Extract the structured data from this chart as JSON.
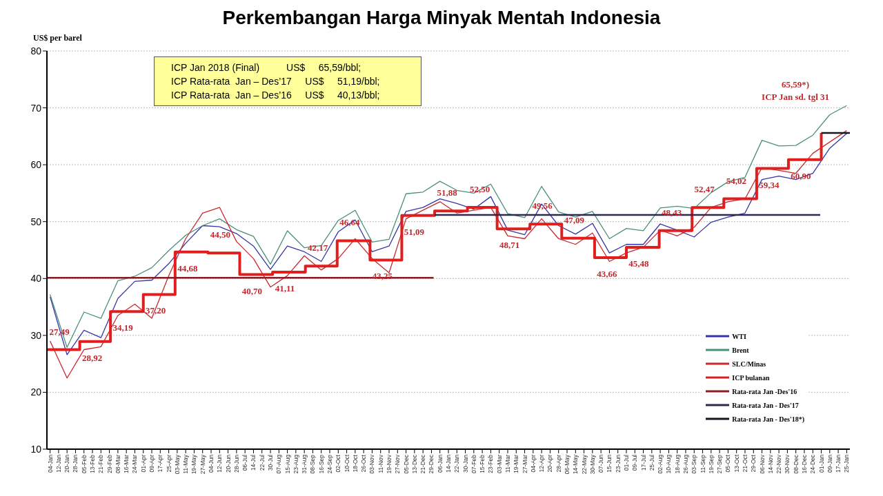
{
  "chart_data": {
    "type": "line",
    "title": "Perkembangan Harga Minyak Mentah Indonesia",
    "ylabel": "US$ per barel",
    "x": [
      "2016-01-04",
      "2016-01-20",
      "2016-02-05",
      "2016-02-21",
      "2016-03-08",
      "2016-03-24",
      "2016-04-09",
      "2016-04-25",
      "2016-05-11",
      "2016-05-27",
      "2016-06-12",
      "2016-06-28",
      "2016-07-14",
      "2016-07-30",
      "2016-08-15",
      "2016-08-31",
      "2016-09-16",
      "2016-10-02",
      "2016-10-18",
      "2016-11-03",
      "2016-11-19",
      "2016-12-05",
      "2016-12-21",
      "2017-01-06",
      "2017-01-22",
      "2017-02-07",
      "2017-02-23",
      "2017-03-11",
      "2017-03-27",
      "2017-04-12",
      "2017-04-28",
      "2017-05-14",
      "2017-05-30",
      "2017-06-15",
      "2017-07-01",
      "2017-07-17",
      "2017-08-02",
      "2017-08-18",
      "2017-09-03",
      "2017-09-19",
      "2017-10-05",
      "2017-10-21",
      "2017-11-06",
      "2017-11-22",
      "2017-12-08",
      "2017-12-24",
      "2018-01-09",
      "2018-01-25"
    ],
    "series": [
      {
        "name": "WTI",
        "color": "#3535a8",
        "values": [
          36.8,
          26.6,
          30.9,
          29.6,
          36.5,
          39.5,
          39.7,
          42.6,
          46.2,
          49.3,
          49.1,
          47.9,
          45.7,
          41.6,
          45.7,
          44.7,
          43.0,
          48.2,
          50.3,
          44.7,
          45.7,
          51.8,
          52.5,
          54.0,
          53.2,
          52.2,
          54.4,
          48.5,
          47.7,
          53.1,
          49.3,
          47.8,
          49.7,
          44.5,
          46.0,
          46.0,
          49.6,
          48.5,
          47.3,
          49.9,
          50.8,
          51.5,
          57.4,
          58.0,
          57.4,
          58.5,
          62.9,
          65.5
        ]
      },
      {
        "name": "Brent",
        "color": "#4a8f78",
        "values": [
          37.2,
          27.9,
          34.1,
          33.0,
          39.6,
          40.4,
          41.9,
          44.9,
          47.6,
          49.3,
          50.5,
          48.6,
          47.4,
          42.5,
          48.4,
          45.4,
          45.8,
          50.2,
          52.0,
          46.4,
          46.9,
          54.9,
          55.2,
          57.1,
          55.5,
          55.0,
          56.6,
          51.4,
          50.7,
          56.2,
          51.7,
          50.8,
          51.8,
          47.0,
          48.8,
          48.4,
          52.4,
          52.7,
          52.3,
          55.1,
          57.0,
          57.8,
          64.3,
          63.3,
          63.4,
          65.2,
          68.8,
          70.4
        ]
      },
      {
        "name": "SLC/Minas",
        "color": "#c8282d",
        "values": [
          29.0,
          22.5,
          27.5,
          28.0,
          33.5,
          35.5,
          33.0,
          40.5,
          47.0,
          51.5,
          52.5,
          46.5,
          43.5,
          38.5,
          40.5,
          44.0,
          41.5,
          43.5,
          47.0,
          43.5,
          41.0,
          50.5,
          52.0,
          53.5,
          51.5,
          52.0,
          52.5,
          47.5,
          47.0,
          50.5,
          47.0,
          46.0,
          48.0,
          43.0,
          44.5,
          45.5,
          48.5,
          47.5,
          49.0,
          52.5,
          53.5,
          54.0,
          59.5,
          59.0,
          58.5,
          62.0,
          64.0,
          66.0
        ]
      },
      {
        "name": "ICP bulanan",
        "type": "step",
        "color": "#e01e1e",
        "x": [
          "2016-01-01",
          "2016-02-01",
          "2016-03-01",
          "2016-04-01",
          "2016-05-01",
          "2016-06-01",
          "2016-07-01",
          "2016-08-01",
          "2016-09-01",
          "2016-10-01",
          "2016-11-01",
          "2016-12-01",
          "2017-01-01",
          "2017-02-01",
          "2017-03-01",
          "2017-04-01",
          "2017-05-01",
          "2017-06-01",
          "2017-07-01",
          "2017-08-01",
          "2017-09-01",
          "2017-10-01",
          "2017-11-01",
          "2017-12-01",
          "2018-01-01"
        ],
        "values": [
          27.49,
          28.92,
          34.19,
          37.2,
          44.68,
          44.5,
          40.7,
          41.11,
          42.17,
          46.64,
          43.25,
          51.09,
          51.88,
          52.5,
          48.71,
          49.56,
          47.09,
          43.66,
          45.48,
          48.43,
          52.47,
          54.02,
          59.34,
          60.9,
          65.59
        ],
        "value_labels": [
          "27,49",
          "28,92",
          "34,19",
          "37,20",
          "44,68",
          "44,50",
          "40,70",
          "41,11",
          "42,17",
          "46,64",
          "43,25",
          "51,09",
          "51,88",
          "52,50",
          "48,71",
          "49,56",
          "47,09",
          "43,66",
          "45,48",
          "48,43",
          "52,47",
          "54,02",
          "59,34",
          "60,90",
          null
        ]
      },
      {
        "name": "Rata-rata Jan -Des'16",
        "color": "#8b1c22",
        "x": [
          "2016-01-01",
          "2016-12-31"
        ],
        "values": [
          40.13,
          40.13
        ]
      },
      {
        "name": "Rata-rata Jan - Des'17",
        "color": "#2d2850",
        "x": [
          "2017-01-01",
          "2017-12-31"
        ],
        "values": [
          51.19,
          51.19
        ]
      },
      {
        "name": "Rata-rata Jan - Des'18*)",
        "color": "#15151f",
        "x": [
          "2018-01-01",
          "2018-01-28"
        ],
        "values": [
          65.59,
          65.59
        ]
      }
    ],
    "annotations": [
      "ICP Jan 2018 (Final)          US$     65,59/bbl;",
      "ICP Rata-rata  Jan – Des’17     US$     51,19/bbl;",
      "ICP Rata-rata  Jan – Des’16     US$     40,13/bbl;",
      "65,59*)",
      "ICP Jan sd. tgl 31"
    ],
    "ylim": [
      10,
      80
    ],
    "yticks": [
      10,
      20,
      30,
      40,
      50,
      60,
      70,
      80
    ],
    "xlim": [
      "2016-01-01",
      "2018-01-28"
    ],
    "xticks": [
      {
        "value": "2016-01-04",
        "label": "04-Jan"
      },
      {
        "value": "2016-01-12",
        "label": "12-Jan"
      },
      {
        "value": "2016-01-20",
        "label": "20-Jan"
      },
      {
        "value": "2016-01-28",
        "label": "28-Jan"
      },
      {
        "value": "2016-02-05",
        "label": "05-Feb"
      },
      {
        "value": "2016-02-13",
        "label": "13-Feb"
      },
      {
        "value": "2016-02-21",
        "label": "21-Feb"
      },
      {
        "value": "2016-02-29",
        "label": "29-Feb"
      },
      {
        "value": "2016-03-08",
        "label": "08-Mar"
      },
      {
        "value": "2016-03-16",
        "label": "16-Mar"
      },
      {
        "value": "2016-03-24",
        "label": "24-Mar"
      },
      {
        "value": "2016-04-01",
        "label": "01-Apr"
      },
      {
        "value": "2016-04-09",
        "label": "09-Apr"
      },
      {
        "value": "2016-04-17",
        "label": "17-Apr"
      },
      {
        "value": "2016-04-25",
        "label": "25-Apr"
      },
      {
        "value": "2016-05-03",
        "label": "03-May"
      },
      {
        "value": "2016-05-11",
        "label": "11-May"
      },
      {
        "value": "2016-05-19",
        "label": "19-May"
      },
      {
        "value": "2016-05-27",
        "label": "27-May"
      },
      {
        "value": "2016-06-04",
        "label": "04-Jun"
      },
      {
        "value": "2016-06-12",
        "label": "12-Jun"
      },
      {
        "value": "2016-06-20",
        "label": "20-Jun"
      },
      {
        "value": "2016-06-28",
        "label": "28-Jun"
      },
      {
        "value": "2016-07-06",
        "label": "06-Jul"
      },
      {
        "value": "2016-07-14",
        "label": "14-Jul"
      },
      {
        "value": "2016-07-22",
        "label": "22-Jul"
      },
      {
        "value": "2016-07-30",
        "label": "30-Jul"
      },
      {
        "value": "2016-08-07",
        "label": "07-Aug"
      },
      {
        "value": "2016-08-15",
        "label": "15-Aug"
      },
      {
        "value": "2016-08-23",
        "label": "23-Aug"
      },
      {
        "value": "2016-08-31",
        "label": "31-Aug"
      },
      {
        "value": "2016-09-08",
        "label": "08-Sep"
      },
      {
        "value": "2016-09-16",
        "label": "16-Sep"
      },
      {
        "value": "2016-09-24",
        "label": "24-Sep"
      },
      {
        "value": "2016-10-02",
        "label": "02-Oct"
      },
      {
        "value": "2016-10-10",
        "label": "10-Oct"
      },
      {
        "value": "2016-10-18",
        "label": "18-Oct"
      },
      {
        "value": "2016-10-26",
        "label": "26-Oct"
      },
      {
        "value": "2016-11-03",
        "label": "03-Nov"
      },
      {
        "value": "2016-11-11",
        "label": "11-Nov"
      },
      {
        "value": "2016-11-19",
        "label": "19-Nov"
      },
      {
        "value": "2016-11-27",
        "label": "27-Nov"
      },
      {
        "value": "2016-12-05",
        "label": "05-Dec"
      },
      {
        "value": "2016-12-13",
        "label": "13-Dec"
      },
      {
        "value": "2016-12-21",
        "label": "21-Dec"
      },
      {
        "value": "2016-12-29",
        "label": "29-Dec"
      },
      {
        "value": "2017-01-06",
        "label": "06-Jan"
      },
      {
        "value": "2017-01-14",
        "label": "14-Jan"
      },
      {
        "value": "2017-01-22",
        "label": "22-Jan"
      },
      {
        "value": "2017-01-30",
        "label": "30-Jan"
      },
      {
        "value": "2017-02-07",
        "label": "07-Feb"
      },
      {
        "value": "2017-02-15",
        "label": "15-Feb"
      },
      {
        "value": "2017-02-23",
        "label": "23-Feb"
      },
      {
        "value": "2017-03-03",
        "label": "03-Mar"
      },
      {
        "value": "2017-03-11",
        "label": "11-Mar"
      },
      {
        "value": "2017-03-19",
        "label": "19-Mar"
      },
      {
        "value": "2017-03-27",
        "label": "27-Mar"
      },
      {
        "value": "2017-04-04",
        "label": "04-Apr"
      },
      {
        "value": "2017-04-12",
        "label": "12-Apr"
      },
      {
        "value": "2017-04-20",
        "label": "20-Apr"
      },
      {
        "value": "2017-04-28",
        "label": "28-Apr"
      },
      {
        "value": "2017-05-06",
        "label": "06-May"
      },
      {
        "value": "2017-05-14",
        "label": "14-May"
      },
      {
        "value": "2017-05-22",
        "label": "22-May"
      },
      {
        "value": "2017-05-30",
        "label": "30-May"
      },
      {
        "value": "2017-06-07",
        "label": "07-Jun"
      },
      {
        "value": "2017-06-15",
        "label": "15-Jun"
      },
      {
        "value": "2017-06-23",
        "label": "23-Jun"
      },
      {
        "value": "2017-07-01",
        "label": "01-Jul"
      },
      {
        "value": "2017-07-09",
        "label": "09-Jul"
      },
      {
        "value": "2017-07-17",
        "label": "17-Jul"
      },
      {
        "value": "2017-07-25",
        "label": "25-Jul"
      },
      {
        "value": "2017-08-02",
        "label": "02-Aug"
      },
      {
        "value": "2017-08-10",
        "label": "10-Aug"
      },
      {
        "value": "2017-08-18",
        "label": "18-Aug"
      },
      {
        "value": "2017-08-26",
        "label": "26-Aug"
      },
      {
        "value": "2017-09-03",
        "label": "03-Sep"
      },
      {
        "value": "2017-09-11",
        "label": "11-Sep"
      },
      {
        "value": "2017-09-19",
        "label": "19-Sep"
      },
      {
        "value": "2017-09-27",
        "label": "27-Sep"
      },
      {
        "value": "2017-10-05",
        "label": "05-Oct"
      },
      {
        "value": "2017-10-13",
        "label": "13-Oct"
      },
      {
        "value": "2017-10-21",
        "label": "21-Oct"
      },
      {
        "value": "2017-10-29",
        "label": "29-Oct"
      },
      {
        "value": "2017-11-06",
        "label": "06-Nov"
      },
      {
        "value": "2017-11-14",
        "label": "14-Nov"
      },
      {
        "value": "2017-11-22",
        "label": "22-Nov"
      },
      {
        "value": "2017-11-30",
        "label": "30-Nov"
      },
      {
        "value": "2017-12-08",
        "label": "08-Dec"
      },
      {
        "value": "2017-12-16",
        "label": "16-Dec"
      },
      {
        "value": "2017-12-24",
        "label": "24-Dec"
      },
      {
        "value": "2018-01-01",
        "label": "01-Jan"
      },
      {
        "value": "2018-01-09",
        "label": "09-Jan"
      },
      {
        "value": "2018-01-17",
        "label": "17-Jan"
      },
      {
        "value": "2018-01-25",
        "label": "25-Jan"
      }
    ],
    "grid": "y",
    "legend": "bottom right"
  }
}
